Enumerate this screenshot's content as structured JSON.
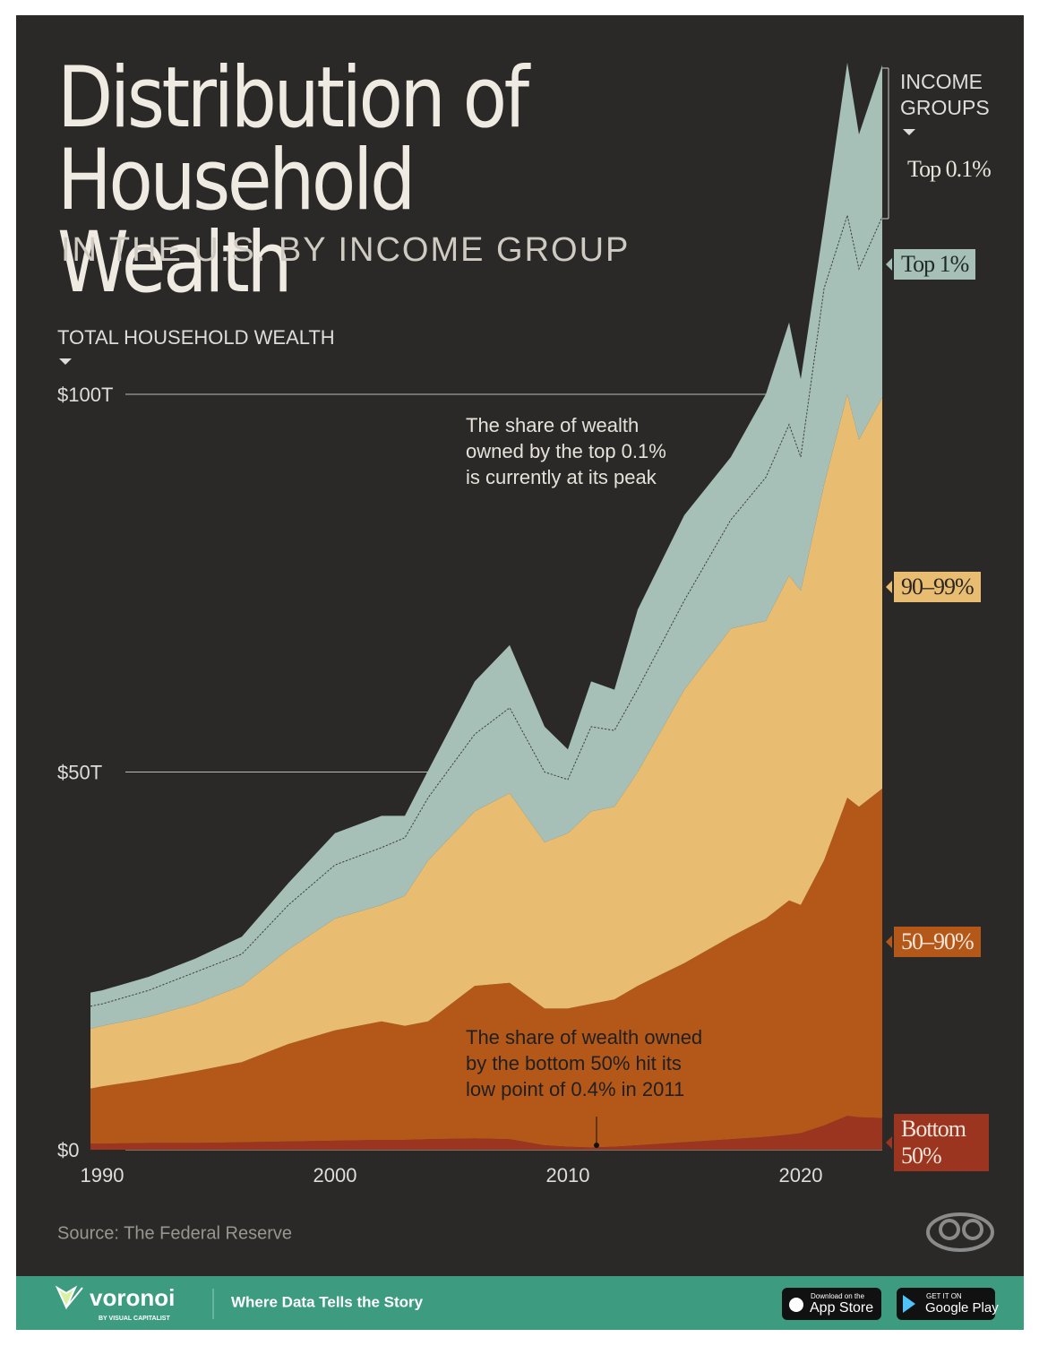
{
  "chart_data": {
    "type": "stacked_area",
    "title": "Distribution of Household Wealth",
    "subtitle": "IN THE U.S. BY INCOME GROUP",
    "y_label": "TOTAL HOUSEHOLD WEALTH",
    "legend_title": "INCOME GROUPS",
    "annotations": [
      {
        "text": "The share of wealth\nowned by the top 0.1%\nis currently at its peak"
      },
      {
        "text": "The share of wealth owned\nby the bottom 50% hit its\nlow point of 0.4% in 2011"
      }
    ],
    "source": "Source: The Federal Reserve",
    "x": [
      1989.5,
      1990,
      1992,
      1994,
      1996,
      1998,
      2000,
      2002,
      2003,
      2004,
      2006,
      2007.5,
      2009,
      2010,
      2011,
      2012,
      2013,
      2015,
      2017,
      2018.5,
      2019.5,
      2020,
      2021,
      2022,
      2022.5,
      2023.5
    ],
    "series": [
      {
        "name": "Bottom 50%",
        "color": "#9b3520",
        "values": [
          0.8,
          0.8,
          0.9,
          0.9,
          1.0,
          1.1,
          1.2,
          1.3,
          1.3,
          1.4,
          1.5,
          1.4,
          0.6,
          0.4,
          0.3,
          0.4,
          0.6,
          1.0,
          1.4,
          1.7,
          2.0,
          2.2,
          3.2,
          4.5,
          4.3,
          4.2
        ]
      },
      {
        "name": "50–90%",
        "color": "#b4581a",
        "values": [
          7.3,
          7.6,
          8.4,
          9.5,
          10.6,
          12.9,
          14.6,
          15.7,
          15.1,
          15.6,
          20.2,
          20.7,
          18.1,
          18.3,
          19.0,
          19.5,
          21.1,
          23.7,
          26.8,
          28.9,
          31.0,
          30.2,
          35.1,
          42.1,
          41.1,
          43.6
        ]
      },
      {
        "name": "90–99%",
        "color": "#e8bd72",
        "values": [
          7.9,
          8.0,
          8.3,
          8.9,
          10.1,
          12.5,
          14.8,
          15.4,
          17.2,
          21.3,
          23.1,
          25.1,
          22.0,
          23.2,
          25.5,
          25.5,
          28.3,
          36.2,
          40.8,
          39.4,
          43.0,
          41.6,
          49.7,
          53.4,
          48.6,
          51.8
        ]
      },
      {
        "name": "Top 1%",
        "color": "#a6bfb7",
        "values": [
          3.0,
          2.9,
          3.5,
          4.2,
          4.2,
          5.9,
          7.1,
          7.6,
          7.7,
          8.3,
          10.2,
          11.3,
          9.3,
          7.1,
          11.2,
          10.1,
          11.0,
          11.8,
          14.4,
          19.0,
          20.0,
          17.7,
          26.0,
          23.7,
          22.6,
          23.9
        ]
      },
      {
        "name": "Top 0.1%",
        "color": "#a6bfb7",
        "values": [
          1.8,
          1.8,
          1.8,
          1.8,
          2.3,
          2.9,
          4.2,
          4.2,
          2.9,
          3.6,
          7.0,
          8.3,
          6.0,
          4.0,
          6.0,
          5.4,
          10.5,
          11.3,
          8.3,
          11.0,
          13.5,
          10.3,
          8.5,
          20.2,
          17.8,
          20.1
        ]
      }
    ],
    "xlim": [
      1989.5,
      2023.5
    ],
    "ylim": [
      0,
      150
    ],
    "xticks": [
      1990,
      2000,
      2010,
      2020
    ],
    "yticks": [
      {
        "value": 0,
        "label": "$0"
      },
      {
        "value": 50,
        "label": "$50T"
      },
      {
        "value": 100,
        "label": "$100T"
      }
    ]
  },
  "footer": {
    "brand": "voronoi",
    "brand_sub": "BY VISUAL CAPITALIST",
    "tagline": "Where Data Tells the Story",
    "app_store_small": "Download on the",
    "app_store": "App Store",
    "google_small": "GET IT ON",
    "google": "Google Play"
  }
}
